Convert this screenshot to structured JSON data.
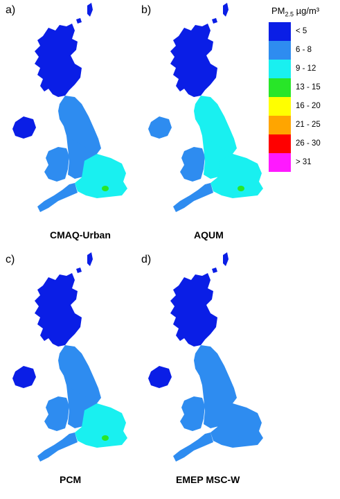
{
  "legend": {
    "title_prefix": "PM",
    "title_sub": "2.5",
    "title_unit": " µg/m³",
    "bins": [
      {
        "label": "< 5",
        "color": "#0a1ee6"
      },
      {
        "label": "6 - 8",
        "color": "#2e8cf0"
      },
      {
        "label": "9 - 12",
        "color": "#19f0f0"
      },
      {
        "label": "13 - 15",
        "color": "#28e628"
      },
      {
        "label": "16 - 20",
        "color": "#ffff00"
      },
      {
        "label": "21 - 25",
        "color": "#ffa500"
      },
      {
        "label": "26 - 30",
        "color": "#ff0000"
      },
      {
        "label": "> 31",
        "color": "#ff19ff"
      }
    ]
  },
  "panels": [
    {
      "letter": "a)",
      "caption": "CMAQ-Urban",
      "fill_england": "#2e8cf0",
      "fill_wales": "#2e8cf0",
      "fill_scotland": "#0a1ee6",
      "fill_ireland": "#0a1ee6",
      "fill_southeast": "#19f0f0",
      "hotspot": "#28e628"
    },
    {
      "letter": "b)",
      "caption": "AQUM",
      "fill_england": "#19f0f0",
      "fill_wales": "#2e8cf0",
      "fill_scotland": "#0a1ee6",
      "fill_ireland": "#2e8cf0",
      "fill_southeast": "#19f0f0",
      "hotspot": "#28e628"
    },
    {
      "letter": "c)",
      "caption": "PCM",
      "fill_england": "#2e8cf0",
      "fill_wales": "#2e8cf0",
      "fill_scotland": "#0a1ee6",
      "fill_ireland": "#0a1ee6",
      "fill_southeast": "#19f0f0",
      "hotspot": "#28e628"
    },
    {
      "letter": "d)",
      "caption": "EMEP MSC-W",
      "fill_england": "#2e8cf0",
      "fill_wales": "#2e8cf0",
      "fill_scotland": "#0a1ee6",
      "fill_ireland": "#0a1ee6",
      "fill_southeast": "#2e8cf0",
      "hotspot": "#2e8cf0"
    }
  ]
}
